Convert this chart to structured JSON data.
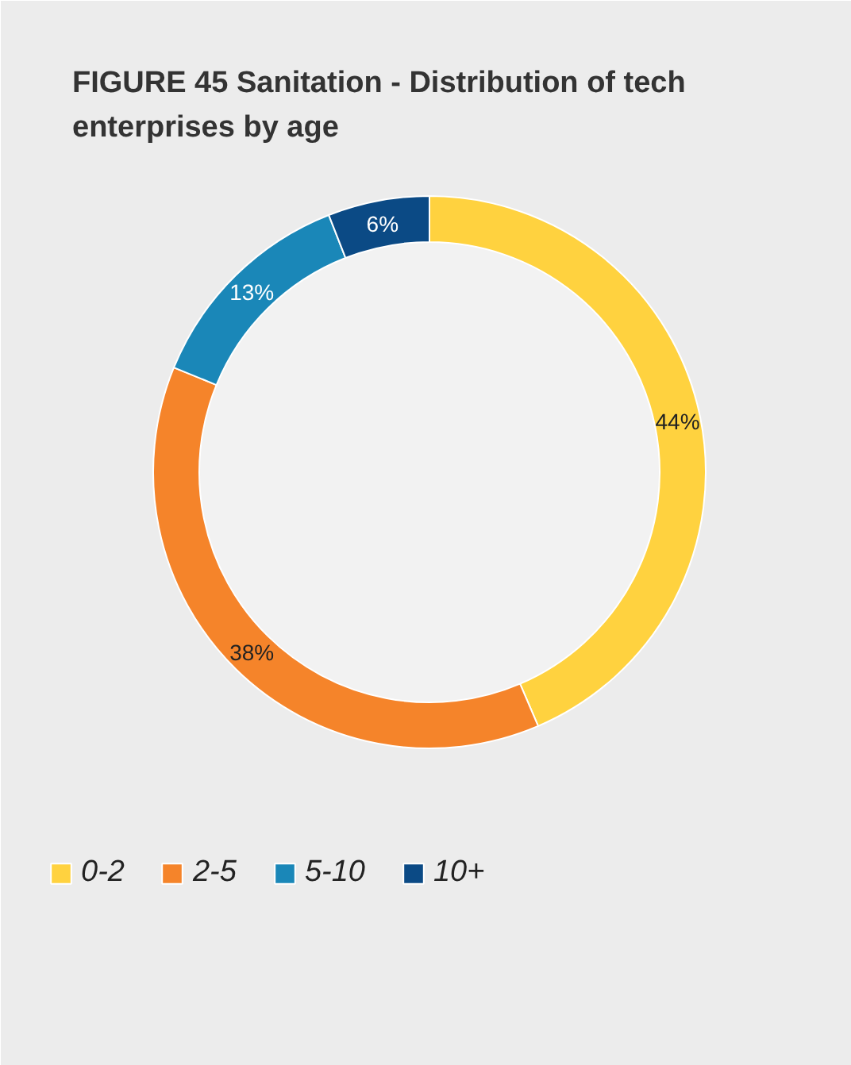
{
  "chart_data": {
    "type": "donut",
    "title": "FIGURE 45 Sanitation -  Distribution of tech enterprises by age",
    "categories": [
      "0-2",
      "2-5",
      "5-10",
      "10+"
    ],
    "values": [
      44,
      38,
      13,
      6
    ],
    "value_labels": [
      "44%",
      "38%",
      "13%",
      "6%"
    ],
    "colors": [
      "#ffd23f",
      "#f5842a",
      "#1a87b8",
      "#0b4a85"
    ],
    "legend": "bottom left"
  }
}
